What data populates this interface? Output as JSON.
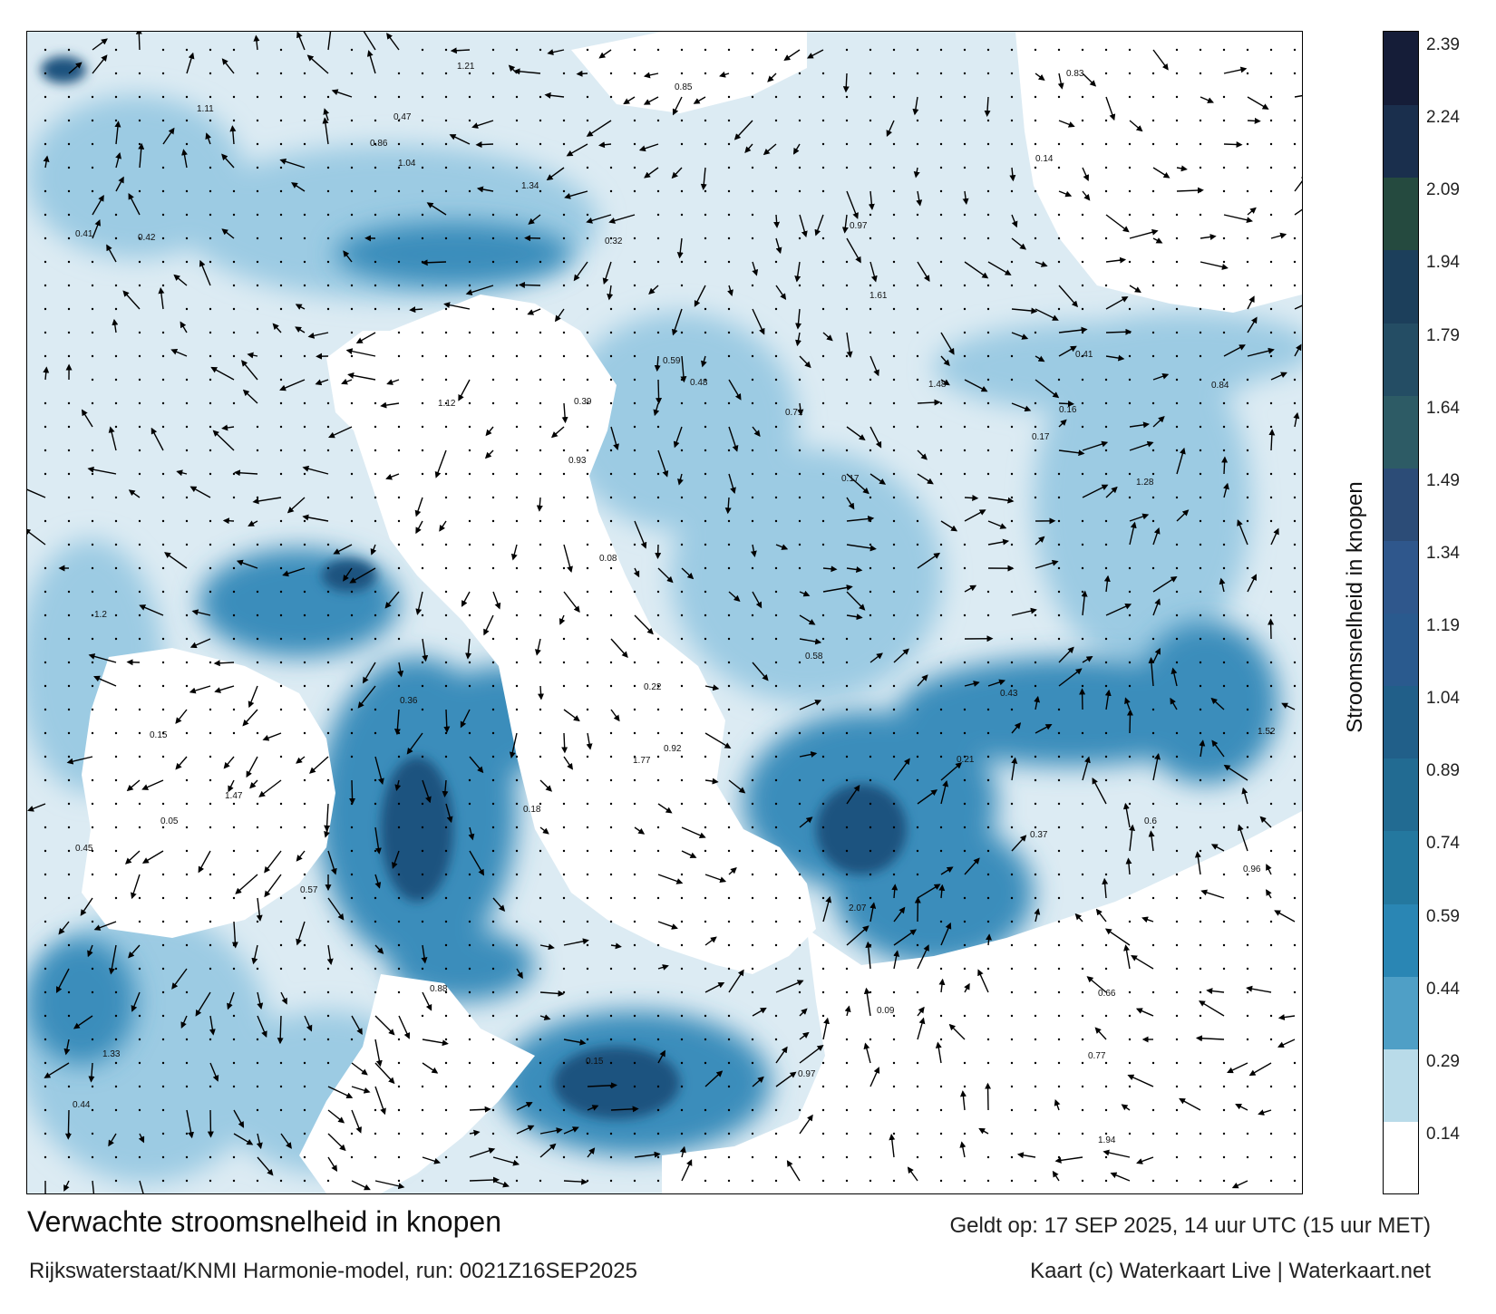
{
  "title": "Verwachte stroomsnelheid in knopen",
  "subtitle": "Rijkswaterstaat/KNMI Harmonie-model, run: 0021Z16SEP2025",
  "valid_time": "Geldt op: 17 SEP 2025, 14 uur UTC (15 uur MET)",
  "credit": "Kaart (c) Waterkaart Live | Waterkaart.net",
  "colorbar": {
    "label": "Stroomsnelheid in knopen",
    "ticks": [
      "0.14",
      "0.29",
      "0.44",
      "0.59",
      "0.74",
      "0.89",
      "1.04",
      "1.19",
      "1.34",
      "1.49",
      "1.64",
      "1.79",
      "1.94",
      "2.09",
      "2.24",
      "2.39"
    ],
    "colors": [
      "#ffffff",
      "#b9dbe9",
      "#4f9fc6",
      "#2a86b4",
      "#24789f",
      "#226b92",
      "#215f89",
      "#2a5a8e",
      "#2f578c",
      "#2c4c77",
      "#2d5b65",
      "#244d64",
      "#1c3f5b",
      "#254a3f",
      "#1a2f4d",
      "#151d38"
    ]
  },
  "map": {
    "colors": {
      "land": "#ffffff",
      "water_light": "#d4e8f2",
      "water_mid": "#8cc3de",
      "water_deep": "#2a7fb0",
      "water_fast": "#1d4f7c"
    },
    "speed_labels": [
      "0.17",
      "0.16",
      "0.18",
      "0.37",
      "0.15",
      "0.17",
      "0.14",
      "0.21",
      "0.44",
      "0.15",
      "0.43",
      "0.36",
      "0.58",
      "0.48",
      "0.57",
      "0.32",
      "0.41",
      "0.66",
      "0.86",
      "0.45",
      "0.59",
      "0.47",
      "0.39",
      "0.42",
      "0.71",
      "0.6",
      "0.77",
      "0.85",
      "1.04",
      "1.11",
      "1.34",
      "1.28",
      "0.92",
      "1.21",
      "1.2",
      "1.47",
      "1.33",
      "1.12",
      "0.97",
      "0.88",
      "0.96",
      "0.84",
      "0.97",
      "1.52",
      "1.48",
      "2.07",
      "1.77",
      "1.61",
      "1.94",
      "0.83",
      "0.93",
      "0.41",
      "0.22",
      "0.08",
      "0.09",
      "0.05"
    ]
  }
}
